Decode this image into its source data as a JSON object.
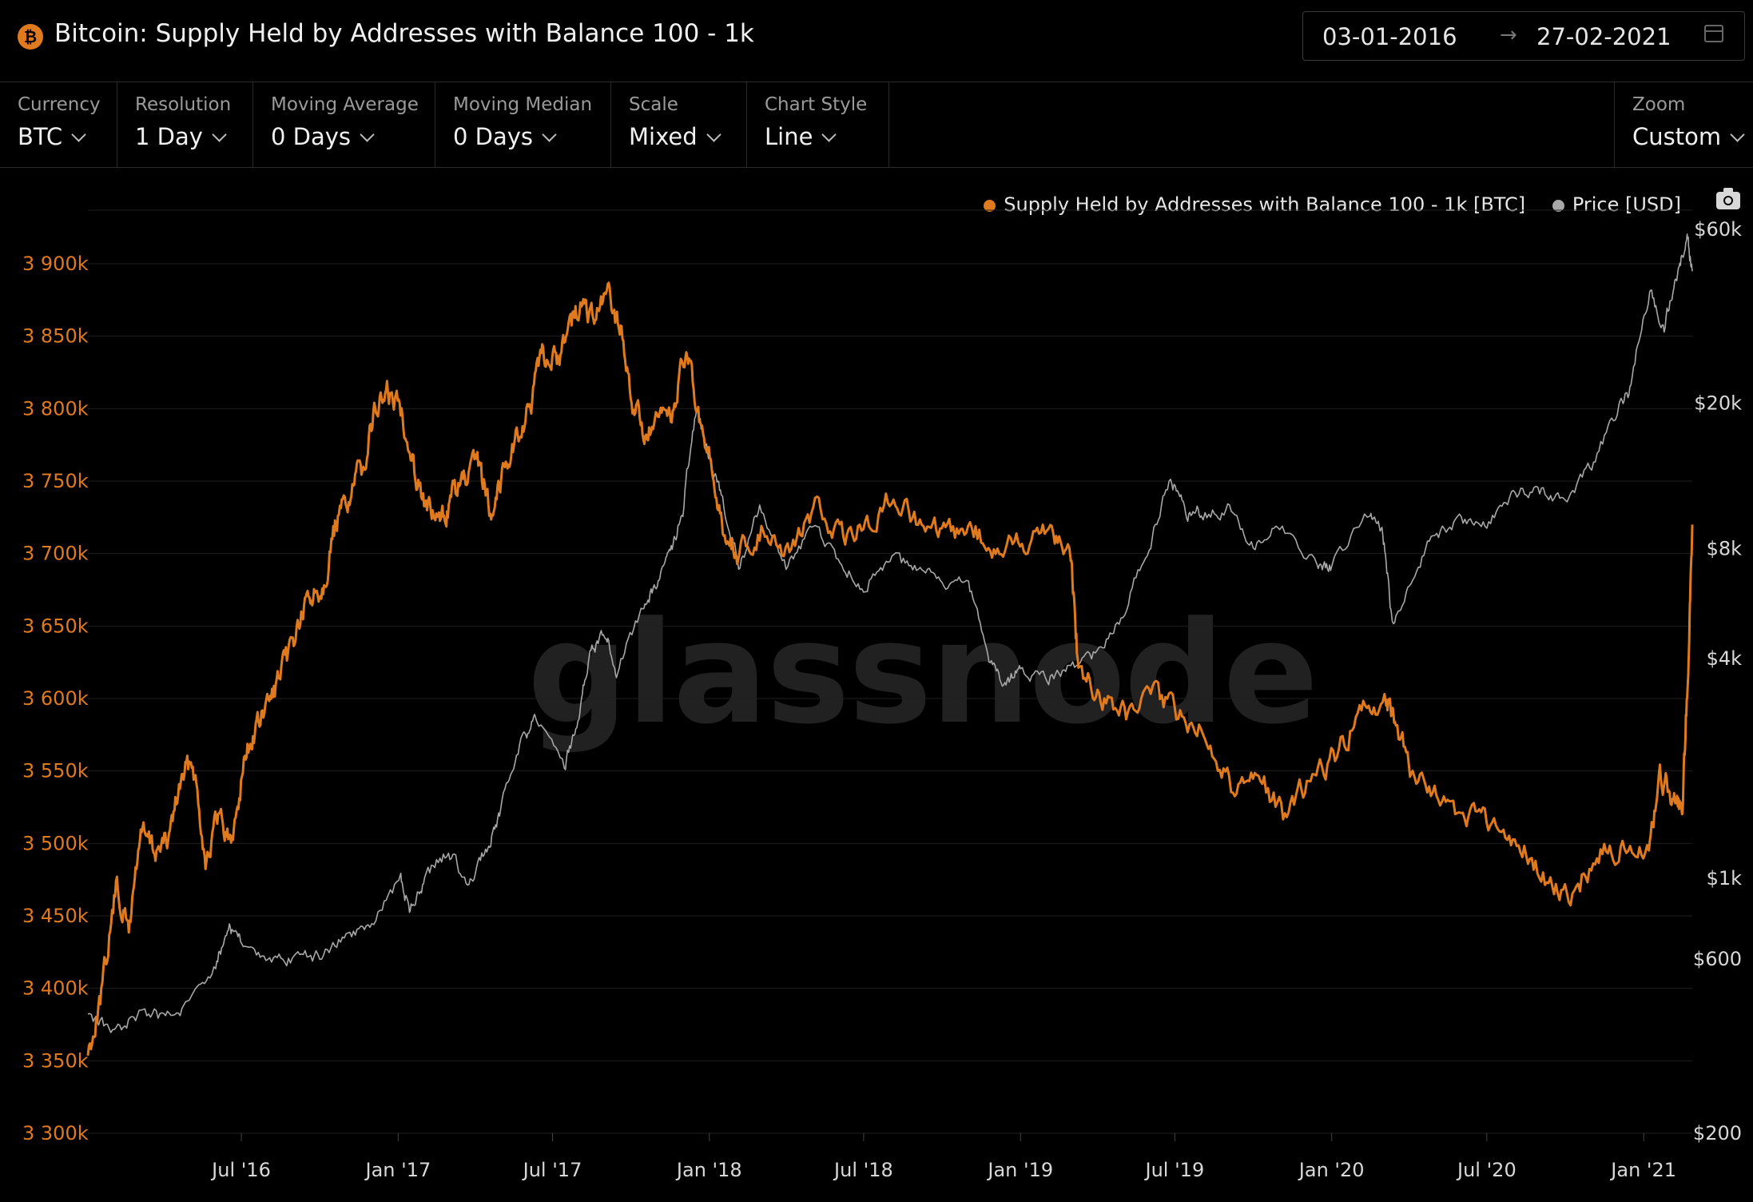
{
  "header": {
    "title": "Bitcoin: Supply Held by Addresses with Balance 100 - 1k",
    "date_from": "03-01-2016",
    "date_arrow": "→",
    "date_to": "27-02-2021"
  },
  "controls": {
    "currency": {
      "label": "Currency",
      "value": "BTC"
    },
    "resolution": {
      "label": "Resolution",
      "value": "1 Day"
    },
    "moving_average": {
      "label": "Moving Average",
      "value": "0 Days"
    },
    "moving_median": {
      "label": "Moving Median",
      "value": "0 Days"
    },
    "scale": {
      "label": "Scale",
      "value": "Mixed"
    },
    "chart_style": {
      "label": "Chart Style",
      "value": "Line"
    },
    "zoom": {
      "label": "Zoom",
      "value": "Custom"
    }
  },
  "watermark": "glassnode",
  "chart_data": {
    "type": "line",
    "x_ticks": [
      "Jul '16",
      "Jan '17",
      "Jul '17",
      "Jan '18",
      "Jul '18",
      "Jan '19",
      "Jul '19",
      "Jan '20",
      "Jul '20",
      "Jan '21"
    ],
    "y_left": {
      "ticks": [
        "3 300k",
        "3 350k",
        "3 400k",
        "3 450k",
        "3 500k",
        "3 550k",
        "3 600k",
        "3 650k",
        "3 700k",
        "3 750k",
        "3 800k",
        "3 850k",
        "3 900k"
      ],
      "min": 3300000,
      "max": 3900000,
      "scale": "linear"
    },
    "y_right": {
      "ticks": [
        "$200",
        "$600",
        "$1k",
        "$4k",
        "$8k",
        "$20k",
        "$60k"
      ],
      "tick_values": [
        200,
        600,
        1000,
        4000,
        8000,
        20000,
        60000
      ],
      "scale": "log"
    },
    "legend_position": "top-right",
    "grid": true,
    "series": [
      {
        "name": "Supply Held by Addresses with Balance 100 - 1k [BTC]",
        "color": "#e07a1f",
        "axis": "left",
        "x": [
          "2016-01-03",
          "2016-01-20",
          "2016-02-05",
          "2016-02-20",
          "2016-03-05",
          "2016-03-20",
          "2016-04-05",
          "2016-04-20",
          "2016-05-05",
          "2016-05-20",
          "2016-06-05",
          "2016-06-20",
          "2016-07-05",
          "2016-07-20",
          "2016-08-05",
          "2016-08-20",
          "2016-09-05",
          "2016-09-20",
          "2016-10-05",
          "2016-10-20",
          "2016-11-05",
          "2016-11-20",
          "2016-12-05",
          "2016-12-20",
          "2017-01-05",
          "2017-01-20",
          "2017-02-05",
          "2017-02-20",
          "2017-03-05",
          "2017-03-20",
          "2017-04-05",
          "2017-04-20",
          "2017-05-05",
          "2017-05-20",
          "2017-06-05",
          "2017-06-20",
          "2017-07-05",
          "2017-07-20",
          "2017-08-05",
          "2017-08-20",
          "2017-09-05",
          "2017-09-20",
          "2017-10-05",
          "2017-10-20",
          "2017-11-05",
          "2017-11-20",
          "2017-12-05",
          "2017-12-20",
          "2018-01-05",
          "2018-01-20",
          "2018-02-05",
          "2018-03-05",
          "2018-04-05",
          "2018-05-05",
          "2018-06-05",
          "2018-07-05",
          "2018-08-05",
          "2018-09-05",
          "2018-10-05",
          "2018-11-05",
          "2018-12-05",
          "2019-01-05",
          "2019-02-05",
          "2019-03-01",
          "2019-03-10",
          "2019-04-05",
          "2019-05-05",
          "2019-06-05",
          "2019-07-05",
          "2019-08-05",
          "2019-09-05",
          "2019-10-05",
          "2019-11-05",
          "2019-12-05",
          "2020-01-05",
          "2020-02-05",
          "2020-03-05",
          "2020-03-15",
          "2020-04-05",
          "2020-05-05",
          "2020-06-05",
          "2020-07-05",
          "2020-08-05",
          "2020-09-05",
          "2020-10-05",
          "2020-11-05",
          "2020-12-05",
          "2021-01-05",
          "2021-01-20",
          "2021-02-05",
          "2021-02-15",
          "2021-02-22",
          "2021-02-27"
        ],
        "y": [
          3355000,
          3400000,
          3470000,
          3440000,
          3510000,
          3495000,
          3500000,
          3540000,
          3560000,
          3490000,
          3520000,
          3500000,
          3560000,
          3580000,
          3600000,
          3620000,
          3650000,
          3670000,
          3680000,
          3720000,
          3740000,
          3760000,
          3800000,
          3810000,
          3800000,
          3760000,
          3730000,
          3720000,
          3740000,
          3750000,
          3760000,
          3730000,
          3760000,
          3780000,
          3800000,
          3840000,
          3830000,
          3860000,
          3870000,
          3860000,
          3880000,
          3850000,
          3800000,
          3780000,
          3790000,
          3800000,
          3840000,
          3790000,
          3750000,
          3710000,
          3700000,
          3720000,
          3700000,
          3730000,
          3710000,
          3720000,
          3740000,
          3720000,
          3710000,
          3720000,
          3700000,
          3710000,
          3720000,
          3700000,
          3620000,
          3600000,
          3590000,
          3600000,
          3590000,
          3580000,
          3540000,
          3550000,
          3520000,
          3540000,
          3560000,
          3590000,
          3600000,
          3580000,
          3550000,
          3530000,
          3520000,
          3510000,
          3500000,
          3480000,
          3460000,
          3490000,
          3500000,
          3490000,
          3550000,
          3530000,
          3520000,
          3620000,
          3720000
        ]
      },
      {
        "name": "Price [USD]",
        "color": "#a8a8a8",
        "axis": "right",
        "x": [
          "2016-01-03",
          "2016-02-01",
          "2016-03-01",
          "2016-04-01",
          "2016-05-01",
          "2016-06-01",
          "2016-06-17",
          "2016-07-01",
          "2016-08-01",
          "2016-09-01",
          "2016-10-01",
          "2016-11-01",
          "2016-12-01",
          "2017-01-04",
          "2017-01-15",
          "2017-02-01",
          "2017-03-01",
          "2017-03-25",
          "2017-04-15",
          "2017-05-01",
          "2017-05-25",
          "2017-06-10",
          "2017-07-15",
          "2017-08-01",
          "2017-08-15",
          "2017-09-01",
          "2017-09-15",
          "2017-10-15",
          "2017-11-01",
          "2017-11-15",
          "2017-12-01",
          "2017-12-17",
          "2018-01-01",
          "2018-01-15",
          "2018-02-06",
          "2018-03-01",
          "2018-04-01",
          "2018-05-01",
          "2018-06-01",
          "2018-07-01",
          "2018-08-01",
          "2018-09-01",
          "2018-10-01",
          "2018-11-01",
          "2018-11-25",
          "2018-12-15",
          "2019-01-01",
          "2019-02-01",
          "2019-03-01",
          "2019-04-01",
          "2019-05-01",
          "2019-06-01",
          "2019-06-26",
          "2019-07-15",
          "2019-08-01",
          "2019-09-01",
          "2019-10-01",
          "2019-11-01",
          "2019-12-15",
          "2020-01-01",
          "2020-02-15",
          "2020-03-01",
          "2020-03-12",
          "2020-04-01",
          "2020-05-01",
          "2020-06-01",
          "2020-07-01",
          "2020-08-01",
          "2020-09-01",
          "2020-10-01",
          "2020-11-01",
          "2020-12-01",
          "2020-12-17",
          "2021-01-08",
          "2021-01-25",
          "2021-02-10",
          "2021-02-21",
          "2021-02-27"
        ],
        "y": [
          430,
          380,
          420,
          420,
          450,
          580,
          740,
          670,
          580,
          600,
          610,
          700,
          750,
          1000,
          800,
          1000,
          1200,
          950,
          1200,
          1500,
          2300,
          2700,
          2000,
          2700,
          4200,
          4700,
          3700,
          5500,
          6500,
          7500,
          10000,
          19000,
          14000,
          11000,
          7000,
          10500,
          7000,
          9000,
          7500,
          6300,
          7600,
          7000,
          6500,
          6300,
          4000,
          3300,
          3800,
          3500,
          3800,
          4100,
          5200,
          8000,
          12500,
          10000,
          10000,
          10300,
          8300,
          9200,
          7200,
          7200,
          10000,
          8700,
          4900,
          6500,
          8800,
          9500,
          9200,
          11500,
          11500,
          11000,
          13500,
          18500,
          22000,
          40000,
          32000,
          45000,
          57000,
          46000
        ]
      }
    ]
  }
}
